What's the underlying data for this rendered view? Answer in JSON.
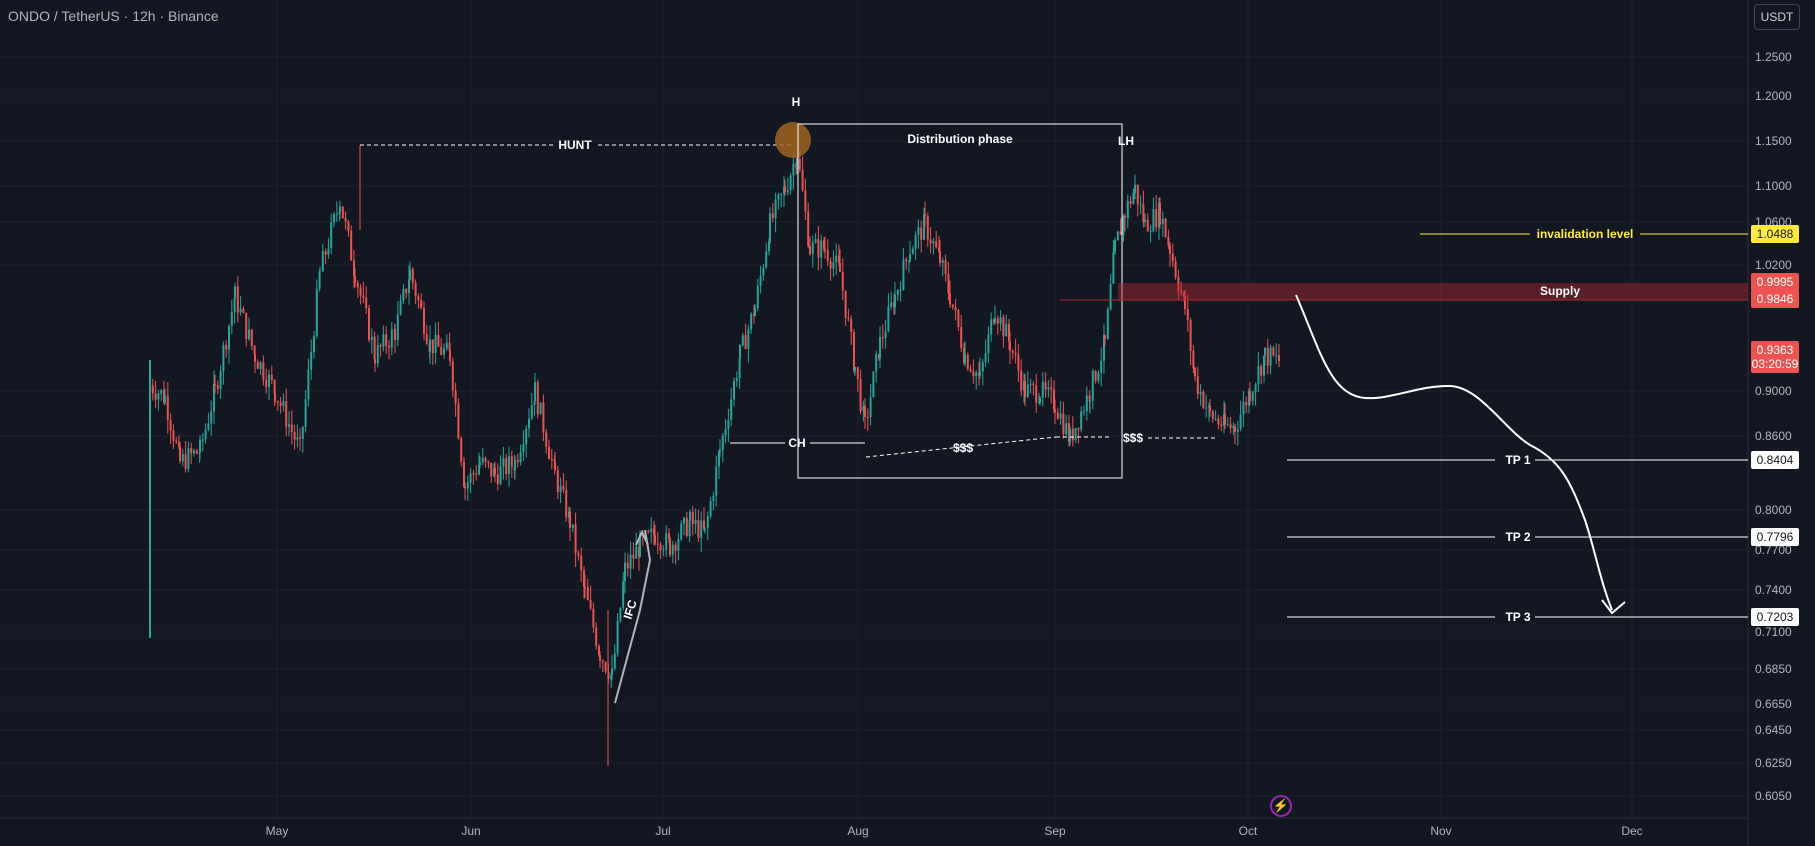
{
  "header": {
    "title": "ONDO / TetherUS · 12h · Binance"
  },
  "currency_button": "USDT",
  "colors": {
    "background": "#131722",
    "up": "#26a69a",
    "down": "#ef5350",
    "grid": "#1e222d",
    "invalidation": "#ffeb3b",
    "supply": "#b22833",
    "annotation": "#ffffff"
  },
  "chart_data": {
    "type": "candlestick",
    "title": "ONDO / TetherUS · 12h · Binance",
    "y_axis_ticks": [
      "1.2500",
      "1.2000",
      "1.1500",
      "1.1000",
      "1.0600",
      "1.0200",
      "0.9000",
      "0.8600",
      "0.8000",
      "0.7700",
      "0.7400",
      "0.7100",
      "0.6850",
      "0.6650",
      "0.6450",
      "0.6250",
      "0.6050"
    ],
    "x_axis_labels": [
      "May",
      "Jun",
      "Jul",
      "Aug",
      "Sep",
      "Oct",
      "Nov",
      "Dec"
    ],
    "price_badges": [
      {
        "id": "invalidation",
        "value": "1.0488",
        "color": "#ffeb3b"
      },
      {
        "id": "supply-top",
        "value": "0.9995",
        "color": "#ef5350"
      },
      {
        "id": "supply-bottom",
        "value": "0.9846",
        "color": "#ef5350"
      },
      {
        "id": "current",
        "value": "0.9363",
        "sub": "03:20:59",
        "color": "#ef5350"
      },
      {
        "id": "tp1",
        "value": "0.8404",
        "color": "#ffffff"
      },
      {
        "id": "tp2",
        "value": "0.7796",
        "color": "#ffffff"
      },
      {
        "id": "tp3",
        "value": "0.7203",
        "color": "#ffffff"
      }
    ],
    "annotations": {
      "hunt": "HUNT",
      "high": "H",
      "lower_high": "LH",
      "distribution": "Distribution phase",
      "choch": "CH",
      "liquidity_1": "$$$",
      "liquidity_2": "$$$",
      "ifc": "IFC",
      "invalidation": "invalidation level",
      "supply": "Supply",
      "tp1": "TP 1",
      "tp2": "TP 2",
      "tp3": "TP 3"
    }
  }
}
